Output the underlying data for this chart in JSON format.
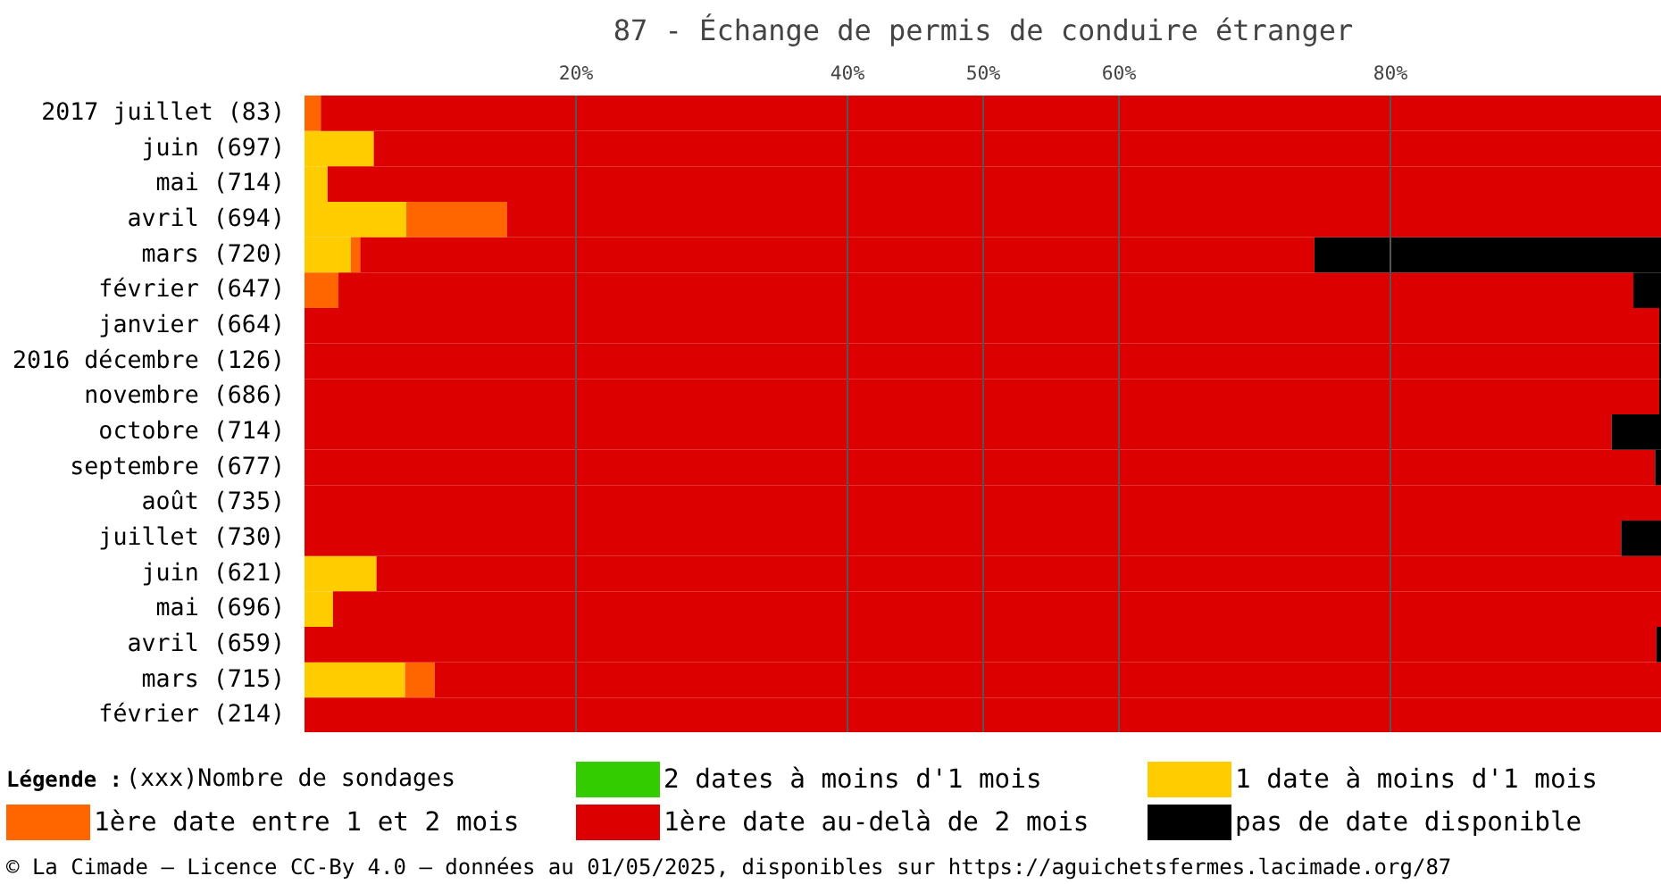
{
  "chart_data": {
    "type": "bar",
    "orientation": "horizontal",
    "stacked": true,
    "title": "87 - Échange de permis de conduire étranger",
    "categories": [
      "2017 juillet (83)",
      "juin (697)",
      "mai (714)",
      "avril (694)",
      "mars (720)",
      "février (647)",
      "janvier (664)",
      "2016 décembre (126)",
      "novembre (686)",
      "octobre (714)",
      "septembre (677)",
      "août (735)",
      "juillet (730)",
      "juin (621)",
      "mai (696)",
      "avril (659)",
      "mars (715)",
      "février (214)"
    ],
    "series": [
      {
        "name": "2 dates à moins d'1 mois",
        "color": "#33cc00",
        "values": [
          0,
          0,
          0,
          0,
          0,
          0,
          0,
          0,
          0,
          0,
          0,
          0,
          0,
          0,
          0,
          0,
          0,
          0
        ]
      },
      {
        "name": "1 date à moins d'1 mois",
        "color": "#ffcc00",
        "values": [
          0,
          5.1,
          1.7,
          7.5,
          3.4,
          0,
          0,
          0,
          0,
          0,
          0,
          0,
          0,
          5.3,
          2.1,
          0,
          7.4,
          0
        ]
      },
      {
        "name": "1ère date entre 1 et 2 mois",
        "color": "#ff6600",
        "values": [
          1.2,
          0,
          0,
          7.4,
          0.7,
          2.5,
          0,
          0,
          0,
          0,
          0,
          0,
          0,
          0,
          0,
          0,
          2.2,
          0
        ]
      },
      {
        "name": "1ère date au-delà de 2 mois",
        "color": "#dd0000",
        "values": [
          98.8,
          94.9,
          98.3,
          85.1,
          70.3,
          95.4,
          99.8,
          99.8,
          99.8,
          96.3,
          99.5,
          100,
          97.0,
          94.7,
          97.9,
          99.6,
          90.4,
          100
        ]
      },
      {
        "name": "pas de date disponible",
        "color": "#000000",
        "values": [
          0,
          0,
          0,
          0,
          25.6,
          2.1,
          0.2,
          0.2,
          0.2,
          3.7,
          0.5,
          0,
          3.0,
          0,
          0,
          0.4,
          0,
          0
        ]
      }
    ],
    "xlim": [
      0,
      100
    ],
    "xticks": [
      {
        "value": 20,
        "label": "20%"
      },
      {
        "value": 40,
        "label": "40%"
      },
      {
        "value": 50,
        "label": "50%"
      },
      {
        "value": 60,
        "label": "60%"
      },
      {
        "value": 80,
        "label": "80%"
      }
    ],
    "grid": "x",
    "legend": "bottom",
    "annotations": [
      "Légende :",
      "(xxx)Nombre de sondages",
      "© La Cimade — Licence CC-By 4.0 — données au 01/05/2025, disponibles sur https://aguichetsfermes.lacimade.org/87"
    ]
  }
}
